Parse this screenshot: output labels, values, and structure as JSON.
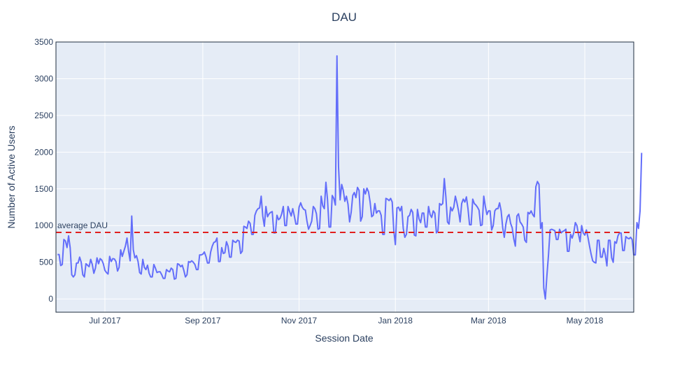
{
  "chart_data": {
    "type": "line",
    "title": "DAU",
    "xlabel": "Session Date",
    "ylabel": "Number of Active Users",
    "x_start": "2017-06-01",
    "x_end": "2018-06-01",
    "xlim": [
      "2017-05-31",
      "2018-06-01"
    ],
    "ylim": [
      -180,
      3500
    ],
    "x_ticks": [
      {
        "date": "2017-07-01",
        "label": "Jul 2017"
      },
      {
        "date": "2017-09-01",
        "label": "Sep 2017"
      },
      {
        "date": "2017-11-01",
        "label": "Nov 2017"
      },
      {
        "date": "2018-01-01",
        "label": "Jan 2018"
      },
      {
        "date": "2018-03-01",
        "label": "Mar 2018"
      },
      {
        "date": "2018-05-01",
        "label": "May 2018"
      }
    ],
    "y_ticks": [
      0,
      500,
      1000,
      1500,
      2000,
      2500,
      3000,
      3500
    ],
    "y_tick_labels": [
      "0",
      "500",
      "1000",
      "1500",
      "2000",
      "2500",
      "3000",
      "3500"
    ],
    "grid": true,
    "series": [
      {
        "color": "#636efa",
        "values": [
          605,
          605,
          455,
          470,
          810,
          790,
          700,
          860,
          700,
          330,
          300,
          330,
          490,
          490,
          570,
          500,
          330,
          300,
          480,
          460,
          440,
          540,
          470,
          350,
          420,
          560,
          480,
          550,
          530,
          480,
          390,
          360,
          340,
          580,
          510,
          550,
          545,
          510,
          380,
          430,
          670,
          580,
          650,
          720,
          830,
          650,
          520,
          1130,
          670,
          560,
          590,
          510,
          360,
          340,
          540,
          430,
          400,
          460,
          350,
          300,
          300,
          470,
          420,
          360,
          370,
          370,
          330,
          280,
          280,
          400,
          380,
          370,
          420,
          400,
          270,
          280,
          480,
          470,
          440,
          460,
          390,
          300,
          330,
          510,
          500,
          520,
          500,
          470,
          400,
          400,
          600,
          600,
          610,
          640,
          580,
          490,
          490,
          640,
          720,
          770,
          780,
          830,
          510,
          510,
          700,
          620,
          630,
          780,
          720,
          570,
          570,
          800,
          780,
          770,
          800,
          790,
          620,
          650,
          990,
          980,
          960,
          1060,
          1030,
          880,
          880,
          1140,
          1200,
          1230,
          1240,
          1400,
          1130,
          990,
          1260,
          1120,
          1160,
          1180,
          1190,
          900,
          900,
          1140,
          1080,
          1100,
          1160,
          1260,
          1000,
          1000,
          1260,
          1190,
          1130,
          1230,
          1130,
          1020,
          1020,
          1250,
          1310,
          1250,
          1220,
          1210,
          1060,
          950,
          1000,
          1060,
          1260,
          1230,
          1160,
          950,
          960,
          1400,
          1270,
          1230,
          1590,
          1360,
          980,
          980,
          1410,
          1370,
          1280,
          3310,
          1800,
          1350,
          1560,
          1480,
          1330,
          1400,
          1290,
          1050,
          1180,
          1410,
          1450,
          1380,
          1520,
          1480,
          1060,
          1120,
          1500,
          1430,
          1510,
          1460,
          1320,
          1120,
          1140,
          1300,
          1170,
          1200,
          1200,
          1140,
          880,
          880,
          1370,
          1360,
          1340,
          1370,
          1320,
          930,
          740,
          1240,
          1250,
          1200,
          1260,
          960,
          840,
          880,
          1120,
          1140,
          1220,
          1180,
          870,
          860,
          1220,
          1090,
          1040,
          1170,
          1170,
          980,
          980,
          1260,
          1150,
          1110,
          1200,
          1170,
          900,
          930,
          1300,
          1280,
          1300,
          1640,
          1390,
          1050,
          1020,
          1250,
          1200,
          1250,
          1400,
          1310,
          1200,
          1050,
          1300,
          1360,
          1320,
          1390,
          1230,
          1010,
          1010,
          1360,
          1300,
          1280,
          1250,
          1210,
          1000,
          1010,
          1400,
          1260,
          1150,
          1200,
          1200,
          940,
          1000,
          1200,
          1230,
          1230,
          1310,
          1200,
          970,
          840,
          1020,
          1120,
          1150,
          1030,
          970,
          820,
          720,
          1130,
          1160,
          1050,
          1020,
          980,
          800,
          770,
          1180,
          1160,
          1200,
          1150,
          1120,
          1530,
          1600,
          1560,
          960,
          1040,
          150,
          0,
          320,
          600,
          940,
          950,
          940,
          930,
          810,
          810,
          950,
          900,
          920,
          930,
          950,
          650,
          650,
          880,
          830,
          900,
          1040,
          1000,
          880,
          780,
          1000,
          900,
          870,
          940,
          840,
          720,
          610,
          520,
          500,
          490,
          800,
          800,
          570,
          570,
          690,
          600,
          450,
          800,
          800,
          560,
          500,
          780,
          760,
          860,
          900,
          900,
          660,
          660,
          850,
          830,
          820,
          840,
          810,
          600,
          600,
          1040,
          960,
          1200,
          1990
        ]
      },
      {
        "type": "hline",
        "value": 907,
        "label": "average DAU",
        "color": "#e0201e",
        "dash": "dashed"
      }
    ]
  }
}
